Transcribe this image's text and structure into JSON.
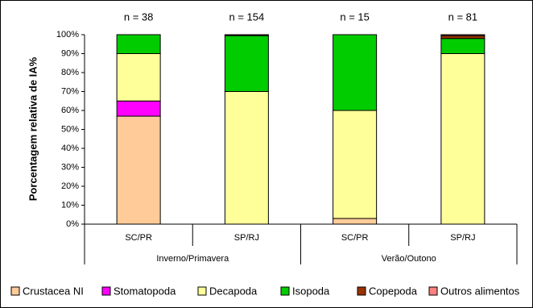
{
  "chart_data": {
    "type": "stacked_bar",
    "y_label": "Porcentagem relativa de IA%",
    "categories": [
      "SC/PR",
      "SP/RJ",
      "SC/PR",
      "SP/RJ"
    ],
    "group_labels": [
      "Inverno/Primavera",
      "Verão/Outono"
    ],
    "annotations": [
      "n = 38",
      "n = 154",
      "n = 15",
      "n = 81"
    ],
    "series": [
      {
        "name": "Crustacea NI",
        "color": "#ffcc99",
        "values": [
          57,
          0,
          3,
          0
        ]
      },
      {
        "name": "Stomatopoda",
        "color": "#ff00ff",
        "values": [
          8,
          0,
          0,
          0
        ]
      },
      {
        "name": "Decapoda",
        "color": "#ffff99",
        "values": [
          25,
          70,
          57,
          90
        ]
      },
      {
        "name": "Isopoda",
        "color": "#00cc00",
        "values": [
          10,
          29.5,
          40,
          8
        ]
      },
      {
        "name": "Copepoda",
        "color": "#993300",
        "values": [
          0,
          0.5,
          0,
          1.5
        ]
      },
      {
        "name": "Outros alimentos",
        "color": "#ff8080",
        "values": [
          0,
          0,
          0,
          0.5
        ]
      }
    ],
    "ylim": [
      0,
      100
    ],
    "yticks": [
      {
        "value": 0,
        "label": "0%"
      },
      {
        "value": 10,
        "label": "10%"
      },
      {
        "value": 20,
        "label": "20%"
      },
      {
        "value": 30,
        "label": "30%"
      },
      {
        "value": 40,
        "label": "40%"
      },
      {
        "value": 50,
        "label": "50%"
      },
      {
        "value": 60,
        "label": "60%"
      },
      {
        "value": 70,
        "label": "70%"
      },
      {
        "value": 80,
        "label": "80%"
      },
      {
        "value": 90,
        "label": "90%"
      },
      {
        "value": 100,
        "label": "100%"
      }
    ],
    "legend": "bottom"
  }
}
